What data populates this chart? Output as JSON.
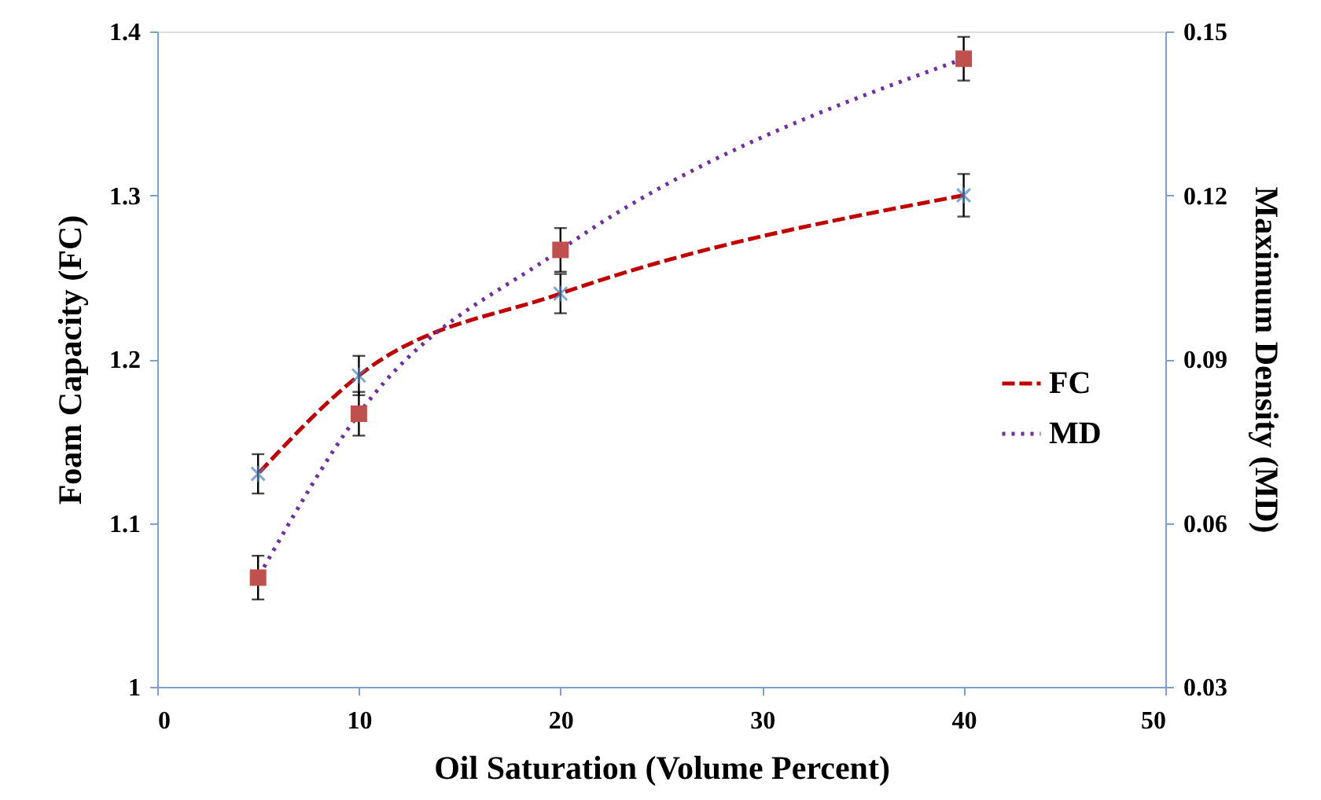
{
  "chart_data": {
    "type": "line",
    "xlabel": "Oil Saturation (Volume Percent)",
    "ylabel": "Foam Capacity (FC)",
    "y2label": "Maximum Density (MD)",
    "x": [
      5,
      10,
      20,
      40
    ],
    "series": [
      {
        "name": "FC",
        "color": "#c00000",
        "line_style": "dashed",
        "marker": "cross",
        "values": [
          1.13,
          1.19,
          1.24,
          1.3
        ],
        "errors": [
          0.012,
          0.012,
          0.012,
          0.013
        ]
      },
      {
        "name": "MD",
        "color": "#7030a0",
        "line_style": "dotted",
        "marker": "square",
        "axis": "y2",
        "values": [
          0.05,
          0.08,
          0.11,
          0.145
        ],
        "errors": [
          0.004,
          0.004,
          0.004,
          0.004
        ]
      }
    ],
    "xlim": [
      0,
      50
    ],
    "xticks": [
      0,
      10,
      20,
      30,
      40,
      50
    ],
    "ylim": [
      1,
      1.4
    ],
    "yticks": [
      1,
      1.1,
      1.2,
      1.3,
      1.4
    ],
    "y2lim": [
      0.03,
      0.15
    ],
    "y2ticks": [
      0.03,
      0.06,
      0.09,
      0.12,
      0.15
    ],
    "legend": "right",
    "grid": false
  }
}
